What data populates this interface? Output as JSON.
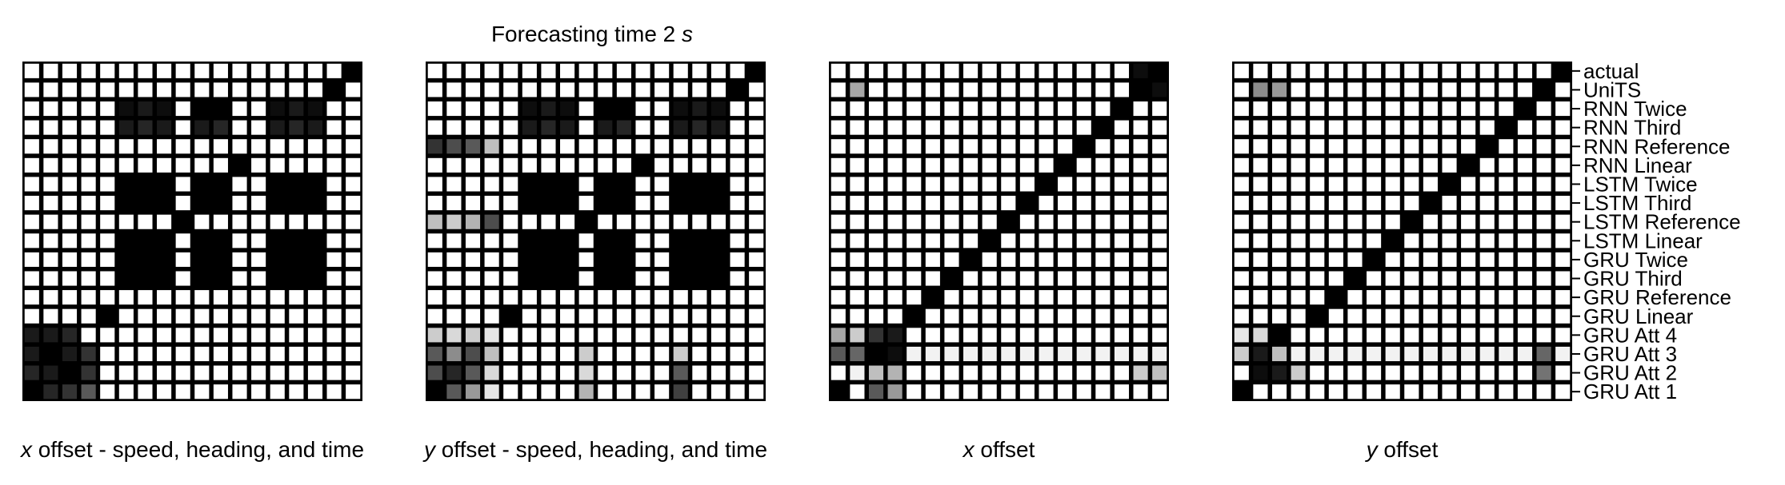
{
  "figure": {
    "title_prefix": "Forecasting time 2 ",
    "title_var": "s"
  },
  "colors": {
    "background": "#000000",
    "cell_max": "#ffffff"
  },
  "labels": [
    "actual",
    "UniTS",
    "RNN Twice",
    "RNN Third",
    "RNN Reference",
    "RNN Linear",
    "LSTM Twice",
    "LSTM Third",
    "LSTM Reference",
    "LSTM Linear",
    "GRU Twice",
    "GRU Third",
    "GRU Reference",
    "GRU Linear",
    "GRU Att 4",
    "GRU Att 3",
    "GRU Att 2",
    "GRU Att 1"
  ],
  "chart_data": [
    {
      "type": "heatmap",
      "xlabel_var": "x",
      "xlabel_rest": " offset - speed, heading, and time",
      "value_scale": "0 = black, 1 = white",
      "matrix": [
        [
          1,
          1,
          1,
          1,
          1,
          1,
          1,
          1,
          1,
          1,
          1,
          1,
          1,
          1,
          1,
          1,
          1,
          0
        ],
        [
          1,
          1,
          1,
          1,
          1,
          1,
          1,
          1,
          1,
          1,
          1,
          1,
          1,
          1,
          1,
          1,
          0,
          1
        ],
        [
          1,
          1,
          1,
          1,
          1,
          0.05,
          0.1,
          0.05,
          1,
          0,
          0,
          1,
          1,
          0.05,
          0.1,
          0.05,
          1,
          1
        ],
        [
          1,
          1,
          1,
          1,
          1,
          0.1,
          0.15,
          0.1,
          1,
          0.1,
          0.15,
          1,
          1,
          0.1,
          0.15,
          0.1,
          1,
          1
        ],
        [
          1,
          1,
          1,
          1,
          1,
          1,
          1,
          1,
          1,
          1,
          1,
          1,
          1,
          1,
          1,
          1,
          1,
          1
        ],
        [
          1,
          1,
          1,
          1,
          1,
          1,
          1,
          1,
          1,
          1,
          1,
          0,
          1,
          1,
          1,
          1,
          1,
          1
        ],
        [
          1,
          1,
          1,
          1,
          1,
          0,
          0,
          0,
          1,
          0,
          0,
          1,
          1,
          0,
          0,
          0,
          1,
          1
        ],
        [
          1,
          1,
          1,
          1,
          1,
          0,
          0,
          0,
          1,
          0,
          0,
          1,
          1,
          0,
          0,
          0,
          1,
          1
        ],
        [
          1,
          1,
          1,
          1,
          1,
          1,
          1,
          1,
          0,
          1,
          1,
          1,
          1,
          1,
          1,
          1,
          1,
          1
        ],
        [
          1,
          1,
          1,
          1,
          1,
          0,
          0,
          0,
          1,
          0,
          0,
          1,
          1,
          0,
          0,
          0,
          1,
          1
        ],
        [
          1,
          1,
          1,
          1,
          1,
          0,
          0,
          0,
          1,
          0,
          0,
          1,
          1,
          0,
          0,
          0,
          1,
          1
        ],
        [
          1,
          1,
          1,
          1,
          1,
          0,
          0,
          0,
          1,
          0,
          0,
          1,
          1,
          0,
          0,
          0,
          1,
          1
        ],
        [
          1,
          1,
          1,
          1,
          1,
          1,
          1,
          1,
          1,
          1,
          1,
          1,
          1,
          1,
          1,
          1,
          1,
          1
        ],
        [
          1,
          1,
          1,
          1,
          0,
          1,
          1,
          1,
          1,
          1,
          1,
          1,
          1,
          1,
          1,
          1,
          1,
          1
        ],
        [
          0.1,
          0.1,
          0.15,
          1,
          1,
          1,
          1,
          1,
          1,
          1,
          1,
          1,
          1,
          1,
          1,
          1,
          1,
          1
        ],
        [
          0.1,
          0,
          0.1,
          0.2,
          1,
          1,
          1,
          1,
          1,
          1,
          1,
          1,
          1,
          1,
          1,
          1,
          1,
          1
        ],
        [
          0.15,
          0.1,
          0,
          0.2,
          1,
          1,
          1,
          1,
          1,
          1,
          1,
          1,
          1,
          1,
          1,
          1,
          1,
          1
        ],
        [
          0,
          0.15,
          0.2,
          0.35,
          1,
          1,
          1,
          1,
          1,
          1,
          1,
          1,
          1,
          1,
          1,
          1,
          1,
          1
        ]
      ]
    },
    {
      "type": "heatmap",
      "xlabel_var": "y",
      "xlabel_rest": " offset - speed, heading, and time",
      "value_scale": "0 = black, 1 = white",
      "matrix": [
        [
          1,
          1,
          1,
          1,
          1,
          1,
          1,
          1,
          1,
          1,
          1,
          1,
          1,
          1,
          1,
          1,
          1,
          0
        ],
        [
          1,
          1,
          1,
          1,
          1,
          1,
          1,
          1,
          1,
          1,
          1,
          1,
          1,
          1,
          1,
          1,
          0,
          1
        ],
        [
          1,
          1,
          1,
          1,
          1,
          0.05,
          0.1,
          0.05,
          1,
          0,
          0,
          1,
          1,
          0.05,
          0.1,
          0.05,
          1,
          1
        ],
        [
          1,
          1,
          1,
          1,
          1,
          0.1,
          0.15,
          0.1,
          1,
          0.1,
          0.15,
          1,
          1,
          0.1,
          0.15,
          0.1,
          1,
          1
        ],
        [
          0.2,
          0.3,
          0.35,
          0.75,
          1,
          1,
          1,
          1,
          1,
          1,
          1,
          1,
          1,
          1,
          1,
          1,
          1,
          1
        ],
        [
          1,
          1,
          1,
          1,
          1,
          1,
          1,
          1,
          1,
          1,
          1,
          0,
          1,
          1,
          1,
          1,
          1,
          1
        ],
        [
          1,
          1,
          1,
          1,
          1,
          0,
          0,
          0,
          1,
          0,
          0,
          1,
          1,
          0,
          0,
          0,
          1,
          1
        ],
        [
          1,
          1,
          1,
          1,
          1,
          0,
          0,
          0,
          1,
          0,
          0,
          1,
          1,
          0,
          0,
          0,
          1,
          1
        ],
        [
          0.75,
          0.8,
          0.7,
          0.3,
          1,
          1,
          1,
          1,
          0,
          1,
          1,
          1,
          1,
          1,
          1,
          1,
          1,
          1
        ],
        [
          1,
          1,
          1,
          1,
          1,
          0,
          0,
          0,
          1,
          0,
          0,
          1,
          1,
          0,
          0,
          0,
          1,
          1
        ],
        [
          1,
          1,
          1,
          1,
          1,
          0,
          0,
          0,
          1,
          0,
          0,
          1,
          1,
          0,
          0,
          0,
          1,
          1
        ],
        [
          1,
          1,
          1,
          1,
          1,
          0,
          0,
          0,
          1,
          0,
          0,
          1,
          1,
          0,
          0,
          0,
          1,
          1
        ],
        [
          1,
          1,
          1,
          1,
          1,
          1,
          1,
          1,
          1,
          1,
          1,
          1,
          1,
          1,
          1,
          1,
          1,
          1
        ],
        [
          1,
          1,
          1,
          1,
          0,
          1,
          1,
          1,
          1,
          1,
          1,
          1,
          1,
          1,
          1,
          1,
          1,
          1
        ],
        [
          0.8,
          0.85,
          0.8,
          0.9,
          1,
          1,
          1,
          1,
          1,
          1,
          1,
          1,
          1,
          1,
          1,
          1,
          1,
          1
        ],
        [
          0.35,
          0.55,
          0.3,
          0.75,
          1,
          1,
          1,
          1,
          0.8,
          1,
          1,
          1,
          1,
          0.8,
          1,
          1,
          1,
          1
        ],
        [
          0.3,
          0.15,
          0.35,
          0.85,
          1,
          1,
          1,
          1,
          0.85,
          1,
          1,
          1,
          1,
          0.35,
          1,
          1,
          1,
          1
        ],
        [
          0,
          0.35,
          0.6,
          0.9,
          1,
          1,
          1,
          1,
          0.7,
          1,
          1,
          1,
          1,
          0.25,
          1,
          1,
          1,
          1
        ]
      ]
    },
    {
      "type": "heatmap",
      "xlabel_var": "x",
      "xlabel_rest": " offset",
      "value_scale": "0 = black, 1 = white",
      "matrix": [
        [
          1,
          1,
          1,
          1,
          1,
          1,
          1,
          1,
          1,
          1,
          1,
          1,
          1,
          1,
          1,
          1,
          0.05,
          0
        ],
        [
          1,
          0.65,
          1,
          1,
          1,
          1,
          1,
          1,
          1,
          1,
          1,
          1,
          1,
          1,
          1,
          1,
          0,
          0.05
        ],
        [
          1,
          1,
          1,
          1,
          1,
          1,
          1,
          1,
          1,
          1,
          1,
          1,
          1,
          1,
          1,
          0,
          1,
          1
        ],
        [
          1,
          1,
          1,
          1,
          1,
          1,
          1,
          1,
          1,
          1,
          1,
          1,
          1,
          1,
          0,
          1,
          1,
          1
        ],
        [
          1,
          1,
          1,
          1,
          1,
          1,
          1,
          1,
          1,
          1,
          1,
          1,
          1,
          0,
          1,
          1,
          1,
          1
        ],
        [
          1,
          1,
          1,
          1,
          1,
          1,
          1,
          1,
          1,
          1,
          1,
          1,
          0,
          1,
          1,
          1,
          1,
          1
        ],
        [
          1,
          1,
          1,
          1,
          1,
          1,
          1,
          1,
          1,
          1,
          1,
          0,
          1,
          1,
          1,
          1,
          1,
          1
        ],
        [
          1,
          1,
          1,
          1,
          1,
          1,
          1,
          1,
          1,
          1,
          0,
          1,
          1,
          1,
          1,
          1,
          1,
          1
        ],
        [
          1,
          1,
          1,
          1,
          1,
          1,
          1,
          1,
          1,
          0,
          1,
          1,
          1,
          1,
          1,
          1,
          1,
          1
        ],
        [
          1,
          1,
          1,
          1,
          1,
          1,
          1,
          1,
          0,
          1,
          1,
          1,
          1,
          1,
          1,
          1,
          1,
          1
        ],
        [
          1,
          1,
          1,
          1,
          1,
          1,
          1,
          0,
          1,
          1,
          1,
          1,
          1,
          1,
          1,
          1,
          1,
          1
        ],
        [
          1,
          1,
          1,
          1,
          1,
          1,
          0,
          1,
          1,
          1,
          1,
          1,
          1,
          1,
          1,
          1,
          1,
          1
        ],
        [
          1,
          1,
          1,
          1,
          1,
          0,
          1,
          1,
          1,
          1,
          1,
          1,
          1,
          1,
          1,
          1,
          1,
          1
        ],
        [
          1,
          1,
          1,
          1,
          0,
          1,
          1,
          1,
          1,
          1,
          1,
          1,
          1,
          1,
          1,
          1,
          1,
          1
        ],
        [
          0.65,
          0.8,
          0.2,
          0.1,
          1,
          1,
          1,
          1,
          1,
          1,
          1,
          1,
          1,
          1,
          1,
          1,
          1,
          1
        ],
        [
          0.35,
          0.4,
          0,
          0.05,
          0.95,
          0.95,
          0.95,
          0.95,
          0.95,
          0.95,
          0.95,
          0.95,
          0.95,
          0.95,
          0.95,
          0.95,
          0.95,
          0.95
        ],
        [
          1,
          0.95,
          0.75,
          0.7,
          1,
          1,
          1,
          1,
          1,
          1,
          1,
          1,
          1,
          1,
          1,
          1,
          0.8,
          0.75
        ],
        [
          0,
          1,
          0.35,
          0.6,
          1,
          1,
          1,
          1,
          1,
          1,
          1,
          1,
          1,
          1,
          1,
          1,
          1,
          1
        ]
      ]
    },
    {
      "type": "heatmap",
      "xlabel_var": "y",
      "xlabel_rest": " offset",
      "value_scale": "0 = black, 1 = white",
      "matrix": [
        [
          1,
          1,
          1,
          1,
          1,
          1,
          1,
          1,
          1,
          1,
          1,
          1,
          1,
          1,
          1,
          1,
          1,
          0
        ],
        [
          1,
          0.55,
          0.6,
          1,
          1,
          1,
          1,
          1,
          1,
          1,
          1,
          1,
          1,
          1,
          1,
          1,
          0,
          1
        ],
        [
          1,
          1,
          1,
          1,
          1,
          1,
          1,
          1,
          1,
          1,
          1,
          1,
          1,
          1,
          1,
          0,
          1,
          1
        ],
        [
          1,
          1,
          1,
          1,
          1,
          1,
          1,
          1,
          1,
          1,
          1,
          1,
          1,
          1,
          0,
          1,
          1,
          1
        ],
        [
          1,
          1,
          1,
          1,
          1,
          1,
          1,
          1,
          1,
          1,
          1,
          1,
          1,
          0,
          1,
          1,
          1,
          1
        ],
        [
          1,
          1,
          1,
          1,
          1,
          1,
          1,
          1,
          1,
          1,
          1,
          1,
          0,
          1,
          1,
          1,
          1,
          1
        ],
        [
          1,
          1,
          1,
          1,
          1,
          1,
          1,
          1,
          1,
          1,
          1,
          0,
          1,
          1,
          1,
          1,
          1,
          1
        ],
        [
          1,
          1,
          1,
          1,
          1,
          1,
          1,
          1,
          1,
          1,
          0,
          1,
          1,
          1,
          1,
          1,
          1,
          1
        ],
        [
          1,
          1,
          1,
          1,
          1,
          1,
          1,
          1,
          1,
          0,
          1,
          1,
          1,
          1,
          1,
          1,
          1,
          1
        ],
        [
          1,
          1,
          1,
          1,
          1,
          1,
          1,
          1,
          0,
          1,
          1,
          1,
          1,
          1,
          1,
          1,
          1,
          1
        ],
        [
          1,
          1,
          1,
          1,
          1,
          1,
          1,
          0,
          1,
          1,
          1,
          1,
          1,
          1,
          1,
          1,
          1,
          1
        ],
        [
          1,
          1,
          1,
          1,
          1,
          1,
          0,
          1,
          1,
          1,
          1,
          1,
          1,
          1,
          1,
          1,
          1,
          1
        ],
        [
          1,
          1,
          1,
          1,
          1,
          0,
          1,
          1,
          1,
          1,
          1,
          1,
          1,
          1,
          1,
          1,
          1,
          1
        ],
        [
          1,
          1,
          1,
          1,
          0,
          1,
          1,
          1,
          1,
          1,
          1,
          1,
          1,
          1,
          1,
          1,
          1,
          1
        ],
        [
          0.9,
          0.85,
          0,
          1,
          1,
          1,
          1,
          1,
          1,
          1,
          1,
          1,
          1,
          1,
          1,
          1,
          1,
          1
        ],
        [
          0.8,
          0.1,
          0.75,
          0.95,
          0.95,
          0.95,
          0.95,
          0.95,
          0.95,
          0.95,
          0.95,
          0.95,
          0.95,
          0.95,
          0.95,
          0.95,
          0.4,
          0.95
        ],
        [
          1,
          0.05,
          0.1,
          0.8,
          1,
          1,
          1,
          1,
          1,
          1,
          1,
          1,
          1,
          1,
          1,
          1,
          0.45,
          1
        ],
        [
          0,
          1,
          1,
          1,
          1,
          1,
          1,
          1,
          1,
          1,
          1,
          1,
          1,
          1,
          1,
          1,
          1,
          1
        ]
      ]
    }
  ]
}
